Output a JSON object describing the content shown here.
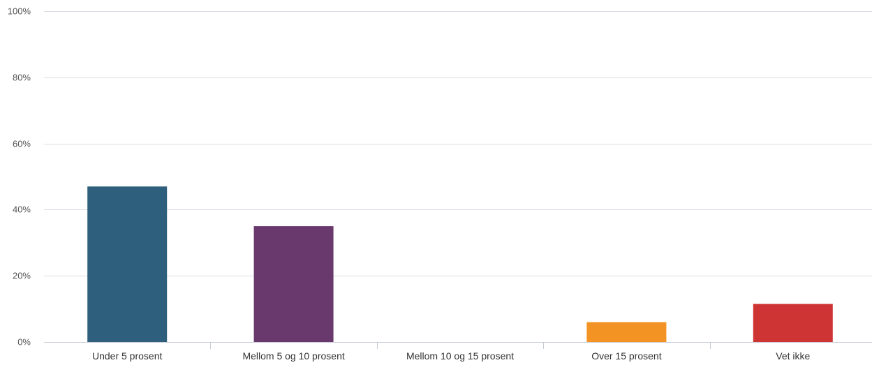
{
  "chart_data": {
    "type": "bar",
    "title": "",
    "xlabel": "",
    "ylabel": "",
    "categories": [
      "Under 5 prosent",
      "Mellom 5 og 10 prosent",
      "Mellom 10 og 15 prosent",
      "Over 15 prosent",
      "Vet ikke"
    ],
    "values": [
      47,
      35,
      0,
      6,
      11.5
    ],
    "colors": [
      "#2e5f7c",
      "#69386c",
      "#4a7a3b",
      "#f39324",
      "#cf3434"
    ],
    "ylim": [
      0,
      100
    ],
    "yticks": [
      0,
      20,
      40,
      60,
      80,
      100
    ],
    "ytick_labels": [
      "0%",
      "20%",
      "40%",
      "60%",
      "80%",
      "100%"
    ],
    "grid": true,
    "legend": "none"
  }
}
